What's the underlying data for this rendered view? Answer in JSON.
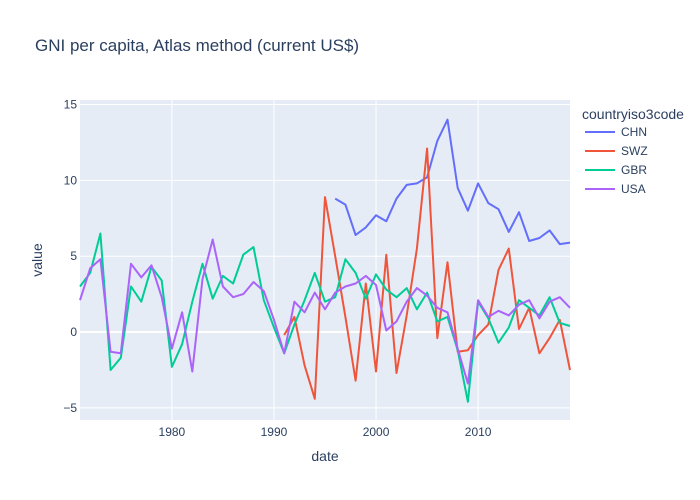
{
  "chart_data": {
    "type": "line",
    "title": "GNI per capita, Atlas method (current US$)",
    "xlabel": "date",
    "ylabel": "value",
    "xlim": [
      1971,
      2019
    ],
    "ylim": [
      -5.8,
      15.3
    ],
    "x_ticks": [
      1980,
      1990,
      2000,
      2010
    ],
    "y_ticks": [
      -5,
      0,
      5,
      10,
      15
    ],
    "grid": true,
    "legend": {
      "title": "countryiso3code",
      "position": "right"
    },
    "series": [
      {
        "name": "CHN",
        "color": "#636efa",
        "x": [
          1996,
          1997,
          1998,
          1999,
          2000,
          2001,
          2002,
          2003,
          2004,
          2005,
          2006,
          2007,
          2008,
          2009,
          2010,
          2011,
          2012,
          2013,
          2014,
          2015,
          2016,
          2017,
          2018,
          2019
        ],
        "y": [
          8.8,
          8.4,
          6.4,
          6.9,
          7.7,
          7.3,
          8.8,
          9.7,
          9.8,
          10.2,
          12.6,
          14.0,
          9.5,
          8.0,
          9.8,
          8.5,
          8.1,
          6.6,
          7.9,
          6.0,
          6.2,
          6.7,
          5.8,
          5.9
        ]
      },
      {
        "name": "SWZ",
        "color": "#ef553b",
        "x": [
          1991,
          1992,
          1993,
          1994,
          1995,
          1996,
          1997,
          1998,
          1999,
          2000,
          2001,
          2002,
          2003,
          2004,
          2005,
          2006,
          2007,
          2008,
          2009,
          2010,
          2011,
          2012,
          2013,
          2014,
          2015,
          2016,
          2017,
          2018,
          2019
        ],
        "y": [
          -0.2,
          1.0,
          -2.2,
          -4.4,
          8.9,
          5.0,
          1.0,
          -3.2,
          3.2,
          -2.6,
          5.1,
          -2.7,
          1.1,
          5.5,
          12.1,
          -0.4,
          4.6,
          -1.3,
          -1.2,
          -0.2,
          0.5,
          4.1,
          5.5,
          0.2,
          1.6,
          -1.4,
          -0.4,
          0.8,
          -2.5
        ]
      },
      {
        "name": "GBR",
        "color": "#00cc96",
        "x": [
          1971,
          1972,
          1973,
          1974,
          1975,
          1976,
          1977,
          1978,
          1979,
          1980,
          1981,
          1982,
          1983,
          1984,
          1985,
          1986,
          1987,
          1988,
          1989,
          1990,
          1991,
          1992,
          1993,
          1994,
          1995,
          1996,
          1997,
          1998,
          1999,
          2000,
          2001,
          2002,
          2003,
          2004,
          2005,
          2006,
          2007,
          2008,
          2009,
          2010,
          2011,
          2012,
          2013,
          2014,
          2015,
          2016,
          2017,
          2018,
          2019
        ],
        "y": [
          3.0,
          3.9,
          6.5,
          -2.5,
          -1.7,
          3.0,
          2.0,
          4.3,
          3.4,
          -2.3,
          -0.8,
          2.0,
          4.5,
          2.2,
          3.7,
          3.2,
          5.1,
          5.6,
          2.1,
          0.3,
          -1.4,
          0.5,
          2.1,
          3.9,
          2.0,
          2.3,
          4.8,
          3.9,
          2.2,
          3.8,
          2.8,
          2.3,
          2.9,
          1.5,
          2.6,
          0.7,
          1.0,
          -1.2,
          -4.6,
          2.0,
          0.9,
          -0.7,
          0.3,
          2.1,
          1.6,
          1.1,
          2.3,
          0.6,
          0.4
        ]
      },
      {
        "name": "USA",
        "color": "#ab63fa",
        "x": [
          1971,
          1972,
          1973,
          1974,
          1975,
          1976,
          1977,
          1978,
          1979,
          1980,
          1981,
          1982,
          1983,
          1984,
          1985,
          1986,
          1987,
          1988,
          1989,
          1990,
          1991,
          1992,
          1993,
          1994,
          1995,
          1996,
          1997,
          1998,
          1999,
          2000,
          2001,
          2002,
          2003,
          2004,
          2005,
          2006,
          2007,
          2008,
          2009,
          2010,
          2011,
          2012,
          2013,
          2014,
          2015,
          2016,
          2017,
          2018,
          2019
        ],
        "y": [
          2.1,
          4.2,
          4.8,
          -1.3,
          -1.4,
          4.5,
          3.6,
          4.4,
          2.3,
          -1.1,
          1.3,
          -2.6,
          3.5,
          6.1,
          3.0,
          2.3,
          2.5,
          3.3,
          2.7,
          0.8,
          -1.4,
          2.0,
          1.3,
          2.6,
          1.5,
          2.6,
          3.0,
          3.2,
          3.7,
          3.1,
          0.1,
          0.7,
          2.0,
          2.9,
          2.4,
          1.6,
          1.3,
          -1.1,
          -3.4,
          2.1,
          1.0,
          1.4,
          1.1,
          1.8,
          2.1,
          0.9,
          2.0,
          2.3,
          1.6
        ]
      }
    ]
  }
}
